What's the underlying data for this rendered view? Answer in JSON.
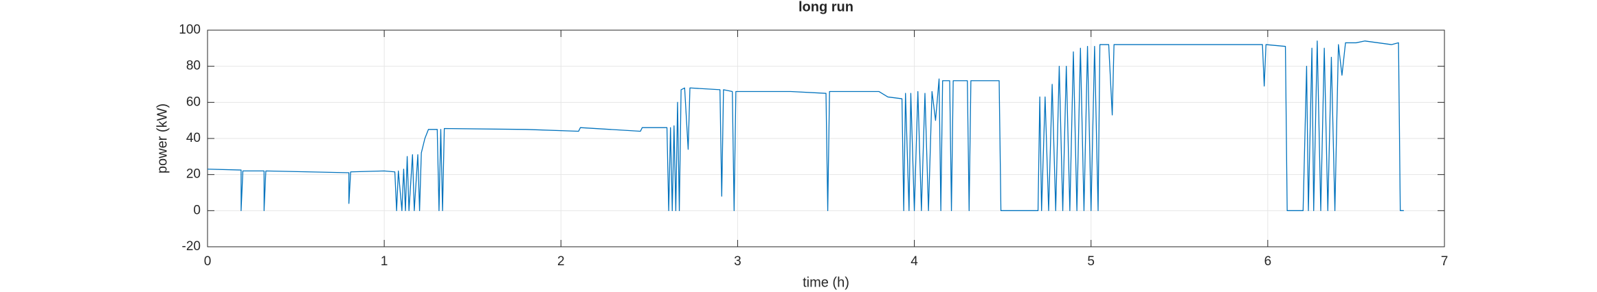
{
  "chart_data": {
    "type": "line",
    "title": "long run",
    "xlabel": "time (h)",
    "ylabel": "power (kW)",
    "xlim": [
      0,
      7
    ],
    "xticks": [
      0,
      1,
      2,
      3,
      4,
      5,
      6,
      7
    ],
    "ylim": [
      -20,
      100
    ],
    "yticks": [
      -20,
      0,
      20,
      40,
      60,
      80,
      100
    ],
    "grid": true,
    "series": [
      {
        "name": "power",
        "color": "#0072bd",
        "x": [
          0,
          0.19,
          0.19,
          0.2,
          0.32,
          0.32,
          0.33,
          0.8,
          0.8,
          0.81,
          1.0,
          1.06,
          1.07,
          1.08,
          1.1,
          1.11,
          1.12,
          1.13,
          1.14,
          1.16,
          1.17,
          1.19,
          1.2,
          1.21,
          1.23,
          1.25,
          1.3,
          1.31,
          1.32,
          1.33,
          1.34,
          1.8,
          2.1,
          2.11,
          2.45,
          2.46,
          2.6,
          2.61,
          2.62,
          2.63,
          2.64,
          2.65,
          2.66,
          2.67,
          2.68,
          2.7,
          2.72,
          2.73,
          2.9,
          2.91,
          2.92,
          2.97,
          2.98,
          2.99,
          3.3,
          3.5,
          3.51,
          3.52,
          3.8,
          3.85,
          3.93,
          3.94,
          3.95,
          3.97,
          3.98,
          4.0,
          4.02,
          4.04,
          4.06,
          4.08,
          4.1,
          4.12,
          4.14,
          4.15,
          4.16,
          4.2,
          4.21,
          4.22,
          4.3,
          4.31,
          4.32,
          4.48,
          4.49,
          4.7,
          4.71,
          4.72,
          4.74,
          4.76,
          4.78,
          4.8,
          4.82,
          4.84,
          4.86,
          4.88,
          4.9,
          4.92,
          4.94,
          4.96,
          4.98,
          5.0,
          5.02,
          5.04,
          5.05,
          5.1,
          5.12,
          5.13,
          5.5,
          5.97,
          5.98,
          5.99,
          6.1,
          6.11,
          6.2,
          6.22,
          6.23,
          6.25,
          6.26,
          6.28,
          6.3,
          6.32,
          6.34,
          6.36,
          6.38,
          6.4,
          6.42,
          6.44,
          6.5,
          6.55,
          6.7,
          6.74,
          6.75,
          6.77
        ],
        "values": [
          23,
          22.5,
          0,
          22,
          22,
          0,
          22,
          21,
          4,
          21.5,
          22,
          21.5,
          0,
          22,
          0,
          23,
          0,
          30,
          0,
          31,
          0,
          31,
          0,
          32,
          40,
          45,
          45,
          0,
          45,
          0,
          45.5,
          45,
          44,
          46,
          44,
          46,
          46,
          0,
          46,
          0,
          47,
          0,
          60,
          0,
          67,
          68,
          34,
          68,
          67,
          8,
          67,
          66,
          0,
          66,
          66,
          65,
          0,
          66,
          66,
          63,
          62,
          0,
          65,
          0,
          65,
          0,
          66,
          0,
          65,
          0,
          66,
          50,
          73,
          0,
          72,
          72,
          0,
          72,
          72,
          0,
          72,
          72,
          0,
          0,
          63,
          0,
          63,
          0,
          70,
          0,
          80,
          0,
          80,
          0,
          88,
          0,
          90,
          0,
          91,
          0,
          91,
          0,
          92,
          92,
          53,
          92,
          92,
          92,
          69,
          92,
          91,
          0,
          0,
          80,
          0,
          90,
          0,
          94,
          0,
          90,
          0,
          85,
          0,
          92,
          75,
          93,
          93,
          94,
          92,
          93,
          0,
          0
        ]
      }
    ]
  }
}
